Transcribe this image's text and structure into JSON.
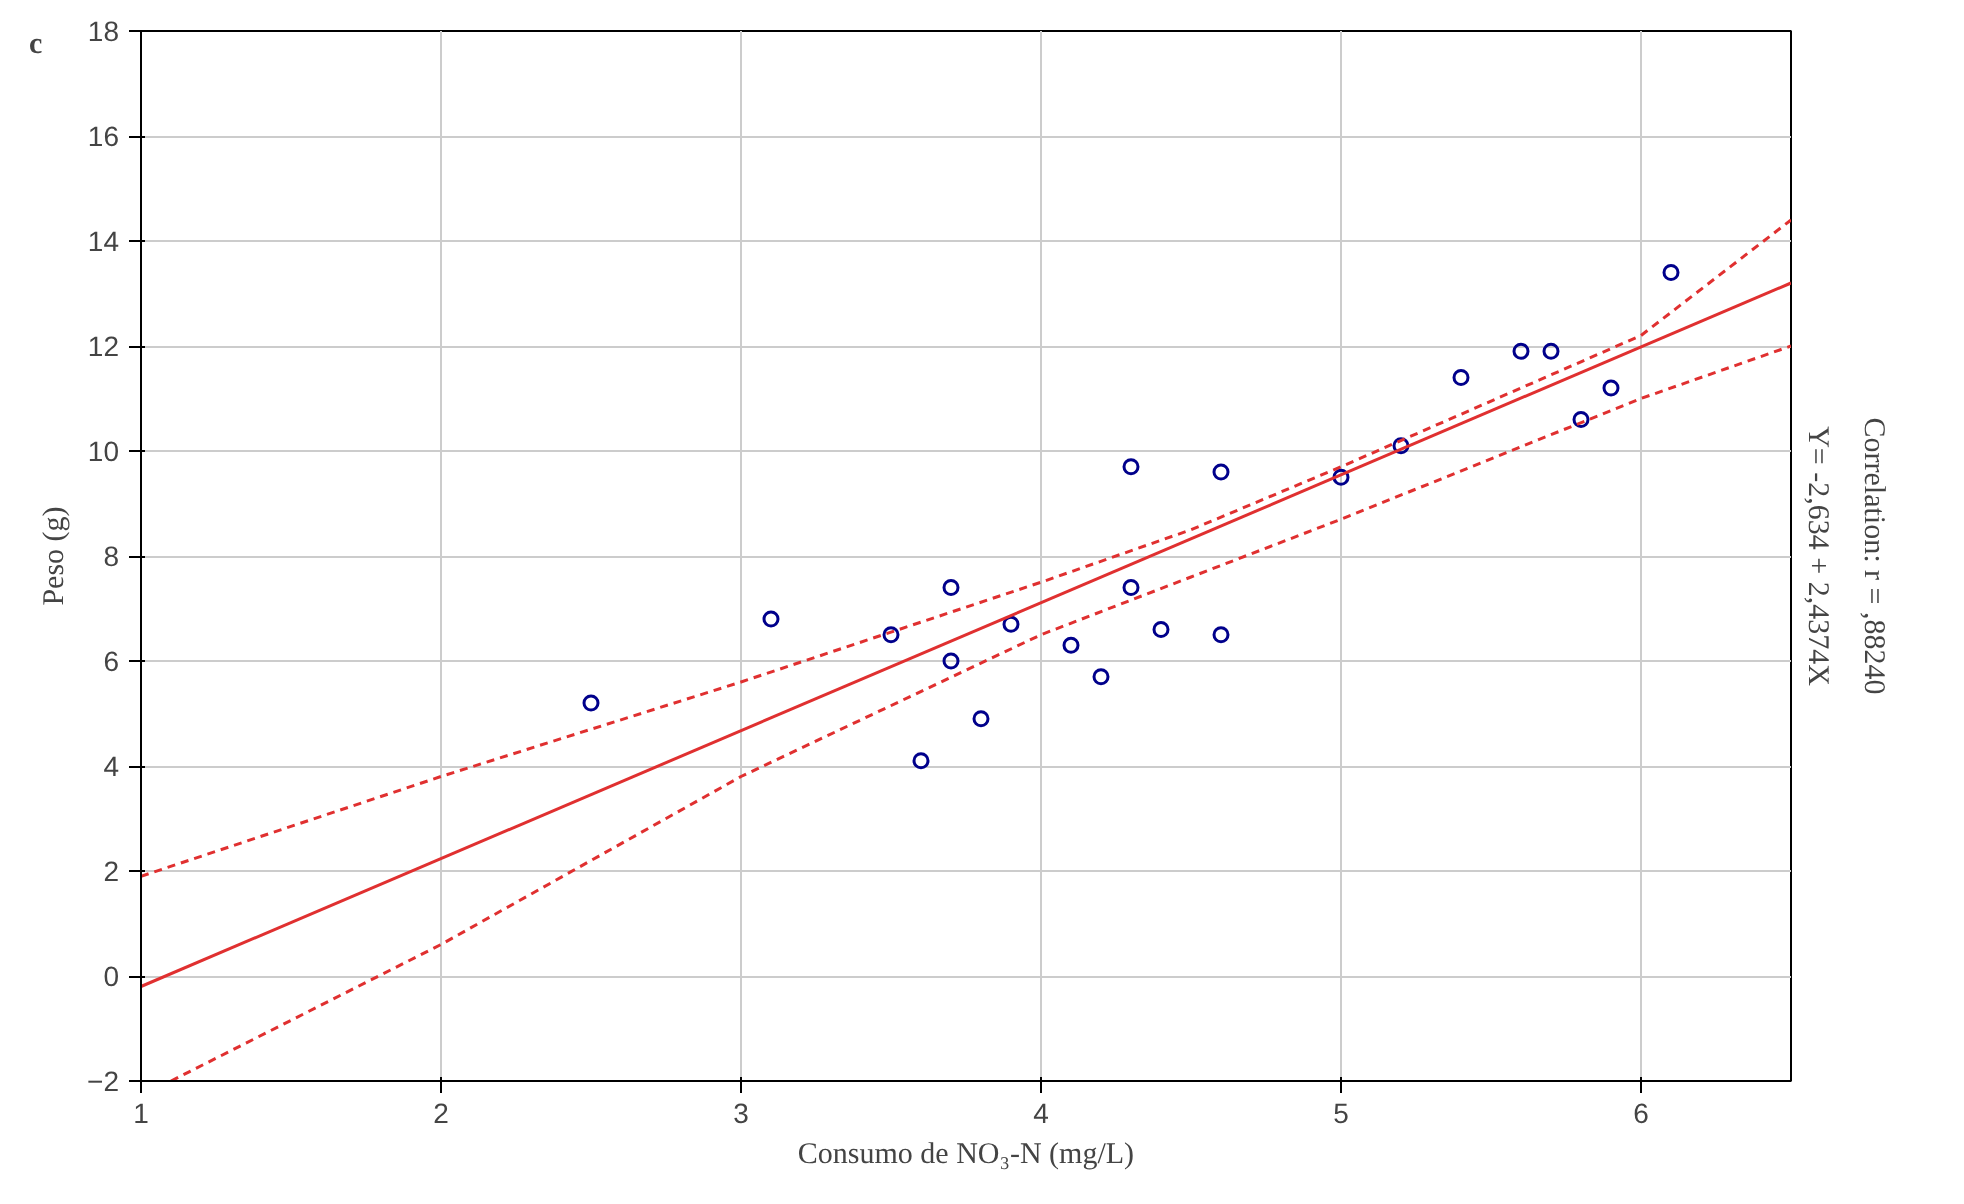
{
  "chart_data": {
    "type": "scatter",
    "xlabel": "Consumo de NO₃-N (mg/L)",
    "ylabel": "Peso (g)",
    "annotations": [
      "c",
      "Y= -2,634 + 2,4374X",
      "Correlation: r = ,88240"
    ],
    "xlim": [
      1,
      6.5
    ],
    "ylim": [
      -2,
      18
    ],
    "xticks": [
      1,
      2,
      3,
      4,
      5,
      6
    ],
    "yticks": [
      -2,
      0,
      2,
      4,
      6,
      8,
      10,
      12,
      14,
      16,
      18
    ],
    "grid": true,
    "series": [
      {
        "marker": "circle",
        "color": "#00008b",
        "x": [
          2.5,
          3.1,
          3.5,
          3.6,
          3.7,
          3.7,
          3.8,
          3.9,
          4.1,
          4.2,
          4.3,
          4.3,
          4.4,
          4.6,
          4.6,
          5.0,
          5.2,
          5.4,
          5.6,
          5.7,
          5.8,
          5.9,
          6.1
        ],
        "values": [
          5.2,
          6.8,
          6.5,
          4.1,
          7.4,
          6.0,
          4.9,
          6.7,
          6.3,
          5.7,
          9.7,
          7.4,
          6.6,
          9.6,
          6.5,
          9.5,
          10.1,
          11.4,
          11.9,
          11.9,
          10.6,
          11.2,
          13.4
        ]
      },
      {
        "type": "line",
        "line_style": "solid",
        "color": "#e03030",
        "x": [
          1,
          6.5
        ],
        "values": [
          -0.2,
          13.2
        ]
      },
      {
        "type": "line",
        "line_style": "dashed",
        "color": "#e03030",
        "x": [
          1,
          2,
          3,
          4,
          4.5,
          5,
          6,
          6.5
        ],
        "values": [
          1.9,
          3.8,
          5.6,
          7.5,
          8.5,
          9.7,
          12.2,
          14.4
        ]
      },
      {
        "type": "line",
        "line_style": "dashed",
        "color": "#e03030",
        "x": [
          1.1,
          2,
          3,
          4,
          4.5,
          5,
          6,
          6.5
        ],
        "values": [
          -2,
          0.6,
          3.8,
          6.5,
          7.6,
          8.7,
          11.0,
          12.0
        ]
      }
    ]
  }
}
